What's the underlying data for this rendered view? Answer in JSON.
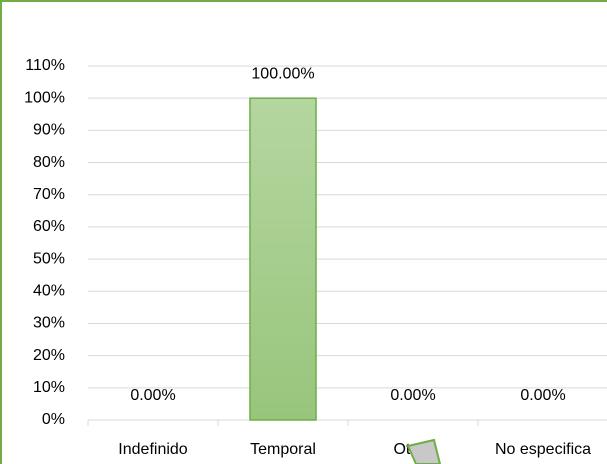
{
  "chart_data": {
    "type": "bar",
    "categories": [
      "Indefinido",
      "Temporal",
      "Otros",
      "No especifica"
    ],
    "values": [
      0,
      100,
      0,
      0
    ],
    "value_labels": [
      "0.00%",
      "100.00%",
      "0.00%",
      "0.00%"
    ],
    "color": "#a9d08e",
    "ylim": [
      0,
      110
    ],
    "yticks": [
      {
        "value": 0,
        "label": "0%"
      },
      {
        "value": 10,
        "label": "10%"
      },
      {
        "value": 20,
        "label": "20%"
      },
      {
        "value": 30,
        "label": "30%"
      },
      {
        "value": 40,
        "label": "40%"
      },
      {
        "value": 50,
        "label": "50%"
      },
      {
        "value": 60,
        "label": "60%"
      },
      {
        "value": 70,
        "label": "70%"
      },
      {
        "value": 80,
        "label": "80%"
      },
      {
        "value": 90,
        "label": "90%"
      },
      {
        "value": 100,
        "label": "100%"
      },
      {
        "value": 110,
        "label": "110%"
      }
    ],
    "grid": true
  }
}
